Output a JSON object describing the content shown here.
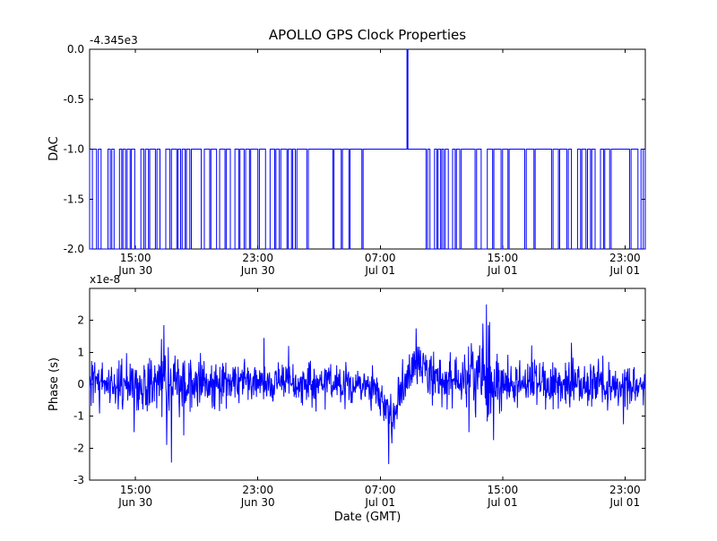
{
  "figure": {
    "title": "APOLLO GPS Clock Properties",
    "xlabel": "Date (GMT)",
    "line_color": "#0000ff",
    "background": "#ffffff",
    "axis_color": "#000000"
  },
  "xaxis": {
    "range": [
      0,
      36.33
    ],
    "ticks": [
      {
        "t": 3,
        "time": "15:00",
        "date": "Jun 30"
      },
      {
        "t": 11,
        "time": "23:00",
        "date": "Jun 30"
      },
      {
        "t": 19,
        "time": "07:00",
        "date": "Jul 01"
      },
      {
        "t": 27,
        "time": "15:00",
        "date": "Jul 01"
      },
      {
        "t": 35,
        "time": "23:00",
        "date": "Jul 01"
      }
    ]
  },
  "top_plot": {
    "ylabel": "DAC",
    "offset_text": "-4.345e3",
    "ylim": [
      -2,
      0
    ],
    "yticks": [
      {
        "v": 0,
        "label": "0.0"
      },
      {
        "v": -0.5,
        "label": "-0.5"
      },
      {
        "v": -1,
        "label": "-1.0"
      },
      {
        "v": -1.5,
        "label": "-1.5"
      },
      {
        "v": -2,
        "label": "-2.0"
      }
    ]
  },
  "bottom_plot": {
    "ylabel": "Phase (s)",
    "scale_text": "x1e-8",
    "ylim": [
      -3,
      3
    ],
    "yticks": [
      {
        "v": 2,
        "label": "2"
      },
      {
        "v": 1,
        "label": "1"
      },
      {
        "v": 0,
        "label": "0"
      },
      {
        "v": -1,
        "label": "-1"
      },
      {
        "v": -2,
        "label": "-2"
      },
      {
        "v": -3,
        "label": "-3"
      }
    ]
  },
  "chart_data": [
    {
      "type": "line",
      "title": "APOLLO GPS Clock Properties",
      "ylabel": "DAC",
      "y_offset_text": "-4.345e3",
      "ylim": [
        -2,
        0
      ],
      "x_unit": "hours after 12:00 Jun 30 (GMT)",
      "x_tick_labels": [
        "15:00 Jun 30",
        "23:00 Jun 30",
        "07:00 Jul 01",
        "15:00 Jul 01",
        "23:00 Jul 01"
      ],
      "x_tick_positions": [
        3,
        11,
        19,
        27,
        35
      ],
      "grid": false,
      "legend": "none",
      "series": [
        {
          "name": "DAC",
          "style": "step",
          "baseline": -1.0,
          "low_value": -2.0,
          "spike": {
            "t": 20.75,
            "value": 0.0,
            "width": 0.06
          },
          "dips": [
            [
              0.0,
              0.18
            ],
            [
              0.45,
              0.12
            ],
            [
              0.75,
              0.45
            ],
            [
              1.35,
              0.1
            ],
            [
              1.6,
              0.35
            ],
            [
              2.1,
              0.08
            ],
            [
              2.35,
              0.1
            ],
            [
              2.65,
              0.08
            ],
            [
              2.95,
              0.4
            ],
            [
              3.55,
              0.1
            ],
            [
              3.85,
              0.08
            ],
            [
              4.3,
              0.1
            ],
            [
              4.6,
              0.38
            ],
            [
              5.25,
              0.1
            ],
            [
              5.7,
              0.08
            ],
            [
              5.95,
              0.1
            ],
            [
              6.25,
              0.08
            ],
            [
              6.55,
              0.1
            ],
            [
              7.3,
              0.2
            ],
            [
              7.85,
              0.08
            ],
            [
              8.3,
              0.2
            ],
            [
              8.85,
              0.08
            ],
            [
              9.2,
              0.3
            ],
            [
              9.75,
              0.08
            ],
            [
              10.1,
              0.1
            ],
            [
              10.45,
              0.08
            ],
            [
              11.0,
              0.1
            ],
            [
              11.5,
              0.3
            ],
            [
              12.1,
              0.08
            ],
            [
              12.4,
              0.1
            ],
            [
              12.9,
              0.08
            ],
            [
              13.2,
              0.08
            ],
            [
              13.45,
              0.1
            ],
            [
              14.2,
              0.1
            ],
            [
              15.9,
              0.08
            ],
            [
              16.45,
              0.08
            ],
            [
              16.95,
              0.08
            ],
            [
              17.8,
              0.08
            ],
            [
              22.0,
              0.1
            ],
            [
              22.25,
              0.3
            ],
            [
              22.7,
              0.08
            ],
            [
              22.95,
              0.08
            ],
            [
              23.15,
              0.1
            ],
            [
              23.45,
              0.28
            ],
            [
              23.9,
              0.08
            ],
            [
              24.2,
              0.1
            ],
            [
              25.2,
              0.1
            ],
            [
              25.6,
              0.4
            ],
            [
              26.35,
              0.08
            ],
            [
              26.9,
              0.1
            ],
            [
              27.35,
              0.08
            ],
            [
              28.45,
              0.1
            ],
            [
              29.05,
              0.08
            ],
            [
              30.2,
              0.1
            ],
            [
              30.65,
              0.08
            ],
            [
              31.2,
              0.1
            ],
            [
              31.5,
              0.4
            ],
            [
              32.1,
              0.08
            ],
            [
              32.45,
              0.1
            ],
            [
              32.75,
              0.08
            ],
            [
              33.05,
              0.35
            ],
            [
              33.6,
              0.08
            ],
            [
              34.0,
              0.1
            ],
            [
              35.3,
              0.1
            ],
            [
              35.85,
              0.2
            ],
            [
              36.2,
              0.13
            ]
          ]
        }
      ]
    },
    {
      "type": "line",
      "ylabel": "Phase (s)",
      "xlabel": "Date (GMT)",
      "y_scale": 1e-08,
      "y_scale_text": "x1e-8",
      "ylim": [
        -3,
        3
      ],
      "x_unit": "hours after 12:00 Jun 30 (GMT)",
      "x_tick_labels": [
        "15:00 Jun 30",
        "23:00 Jun 30",
        "07:00 Jul 01",
        "15:00 Jul 01",
        "23:00 Jul 01"
      ],
      "x_tick_positions": [
        3,
        11,
        19,
        27,
        35
      ],
      "grid": false,
      "legend": "none",
      "series": [
        {
          "name": "Phase",
          "style": "noisy",
          "synthesis": {
            "seed": 20110701,
            "n": 1400,
            "base_sigma": 0.36,
            "mean_profile": [
              [
                0,
                0
              ],
              [
                18.4,
                0
              ],
              [
                19.0,
                -0.5
              ],
              [
                19.6,
                -1.0
              ],
              [
                20.1,
                -0.7
              ],
              [
                20.6,
                0.1
              ],
              [
                21.2,
                0.55
              ],
              [
                21.8,
                0.45
              ],
              [
                22.5,
                0.15
              ],
              [
                23.5,
                0.05
              ],
              [
                25.5,
                0.2
              ],
              [
                26.5,
                0.1
              ],
              [
                28,
                0
              ],
              [
                36.33,
                0
              ]
            ],
            "sigma_profile": [
              [
                0,
                1.05
              ],
              [
                2.5,
                1.2
              ],
              [
                5,
                1.35
              ],
              [
                6.5,
                1.15
              ],
              [
                8,
                0.95
              ],
              [
                12,
                0.9
              ],
              [
                15,
                0.85
              ],
              [
                17.5,
                0.75
              ],
              [
                19,
                0.9
              ],
              [
                20.5,
                1.0
              ],
              [
                22,
                1.0
              ],
              [
                24,
                1.15
              ],
              [
                25.5,
                1.45
              ],
              [
                26.5,
                1.35
              ],
              [
                28,
                1.0
              ],
              [
                31,
                0.9
              ],
              [
                34,
                0.95
              ],
              [
                36.33,
                0.9
              ]
            ],
            "spikes": [
              [
                2.9,
                -1.5
              ],
              [
                4.85,
                1.85
              ],
              [
                5.05,
                -1.9
              ],
              [
                5.35,
                -2.45
              ],
              [
                6.15,
                -1.6
              ],
              [
                11.4,
                1.45
              ],
              [
                13.0,
                1.2
              ],
              [
                19.55,
                -2.5
              ],
              [
                19.75,
                -1.85
              ],
              [
                21.35,
                1.75
              ],
              [
                24.8,
                -1.5
              ],
              [
                25.7,
                1.9
              ],
              [
                25.95,
                2.5
              ],
              [
                26.15,
                1.95
              ],
              [
                26.4,
                -1.75
              ],
              [
                31.5,
                1.3
              ],
              [
                34.9,
                -1.25
              ]
            ]
          }
        }
      ]
    }
  ]
}
